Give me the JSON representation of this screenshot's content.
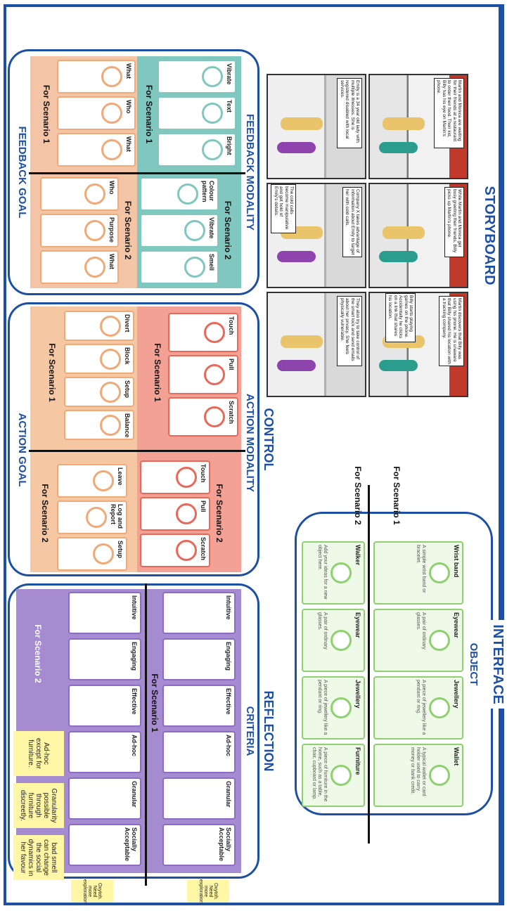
{
  "storyboard": {
    "title": "STORYBOARD",
    "captions": [
      "Martin and Monica are waiting for their friends at a restaurant to order their food. Their kid, Billy has his eye on Martin's phone.",
      "While Martin and Monica get busy greeting their friends, Billy picks up Martin's phone.",
      "Martin discovers that Billy was using his phone. He is unaware that Billy shared his location with a tracking company.",
      "Emily is a 34 year old lady with multiple illnesses. She is registered disabled with local services.",
      "Company X takes advantage of information about Emily to target her with cold calls.",
      "They also try to take control of the smart lock and send emails about her privacy. She feels physically vulnerable."
    ],
    "notes": [
      "Billy starts playing games on the phone. Accidentally he clicks on a link that shares his location.",
      "The cold calls become manipulative and get hold of Emily's details."
    ]
  },
  "interface": {
    "title": "INTERFACE",
    "subtitle": "OBJECT",
    "scenario_labels": [
      "For Scenario 1",
      "For Scenario 2"
    ],
    "scenario_1": [
      {
        "name": "Wrist band",
        "desc": "A simple wrist band or bracelet."
      },
      {
        "name": "Eyewear",
        "desc": "A pair of ordinary glasses."
      },
      {
        "name": "Jewellery",
        "desc": "A piece of jewellery like a pendant or ring."
      },
      {
        "name": "Wallet",
        "desc": "A typical wallet or card holder used to carry money or bank credit."
      }
    ],
    "scenario_2": [
      {
        "name": "Walker",
        "desc": "Add your ideas for a new object here."
      },
      {
        "name": "Eyewear",
        "desc": "A pair of ordinary glasses."
      },
      {
        "name": "Jewellery",
        "desc": "A piece of jewellery like a pendant or ring."
      },
      {
        "name": "Furniture",
        "desc": "A piece of furniture in the home, such as a table, chair, cupboard or lamp."
      }
    ]
  },
  "control": {
    "title": "CONTROL",
    "feedback_modality": {
      "title": "FEEDBACK MODALITY",
      "scenario_labels": [
        "For Scenario 1",
        "For Scenario 2"
      ],
      "scenario_1": [
        "Vibrate",
        "Text",
        "Bright"
      ],
      "scenario_2": [
        "Colour pattern",
        "Vibrate",
        "Smell"
      ]
    },
    "feedback_goal": {
      "title": "FEEDBACK GOAL",
      "scenario_labels": [
        "For Scenario 1",
        "For Scenario 2"
      ],
      "scenario_1": [
        "What",
        "Who",
        "What"
      ],
      "scenario_2": [
        "Who",
        "Purpose",
        "What"
      ]
    },
    "action_modality": {
      "title": "ACTION MODALITY",
      "scenario_labels": [
        "For Scenario 1",
        "For Scenario 2"
      ],
      "scenario_1": [
        "Touch",
        "Pull",
        "Scratch"
      ],
      "scenario_2": [
        "Touch",
        "Pull",
        "Scratch"
      ]
    },
    "action_goal": {
      "title": "ACTION GOAL",
      "scenario_labels": [
        "For Scenario 1",
        "For Scenario 2"
      ],
      "scenario_1": [
        "Divert",
        "Block",
        "Setup",
        "Balance"
      ],
      "scenario_2": [
        "Leave",
        "Log and Report",
        "Setup"
      ]
    }
  },
  "reflection": {
    "title": "REFLECTION",
    "criteria": {
      "title": "CRITERIA",
      "scenario_labels": [
        "For Scenario 1",
        "For Scenario 2"
      ],
      "items": [
        "Intuitive",
        "Engaging",
        "Effective",
        "Ad-hoc",
        "Granular",
        "Socially Acceptable"
      ],
      "notes": [
        "Ad-hoc except for furniture.",
        "Granularity possible through furniture discreetly.",
        "bad smell can change the social dynamics in her favour"
      ],
      "side_notes": [
        "Oxytoh. Need more exploration",
        "Oxytoh. Need more exploration"
      ]
    }
  }
}
